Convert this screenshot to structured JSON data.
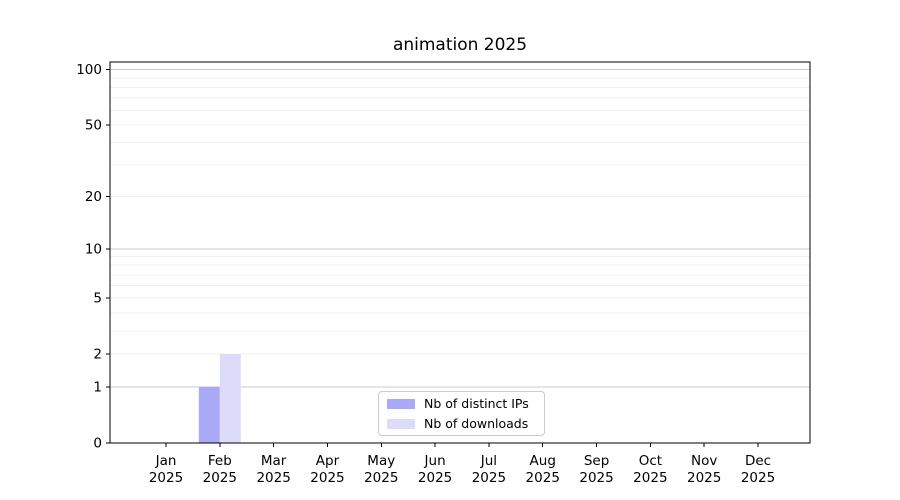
{
  "chart_data": {
    "type": "bar",
    "title": "animation 2025",
    "categories": [
      "Jan",
      "Feb",
      "Mar",
      "Apr",
      "May",
      "Jun",
      "Jul",
      "Aug",
      "Sep",
      "Oct",
      "Nov",
      "Dec"
    ],
    "category_year": "2025",
    "series": [
      {
        "name": "Nb of distinct IPs",
        "color": "#a9a9f7",
        "values": [
          0,
          1,
          0,
          0,
          0,
          0,
          0,
          0,
          0,
          0,
          0,
          0
        ]
      },
      {
        "name": "Nb of downloads",
        "color": "#dcdcfa",
        "values": [
          0,
          2,
          0,
          0,
          0,
          0,
          0,
          0,
          0,
          0,
          0,
          0
        ]
      }
    ],
    "yscale": "log1p",
    "ylim": [
      0,
      110
    ],
    "yticks": [
      0,
      1,
      2,
      5,
      10,
      20,
      50,
      100
    ],
    "grid_major_values": [
      1,
      10,
      100
    ],
    "grid_minor_values": [
      2,
      3,
      4,
      5,
      6,
      7,
      8,
      9,
      20,
      30,
      40,
      50,
      60,
      70,
      80,
      90
    ],
    "legend_position": "lower center",
    "colors": {
      "axis": "#000000",
      "grid_major": "#cccccc",
      "grid_minor": "#f0f0f0",
      "legend_border": "#cccccc",
      "background": "#ffffff"
    }
  }
}
